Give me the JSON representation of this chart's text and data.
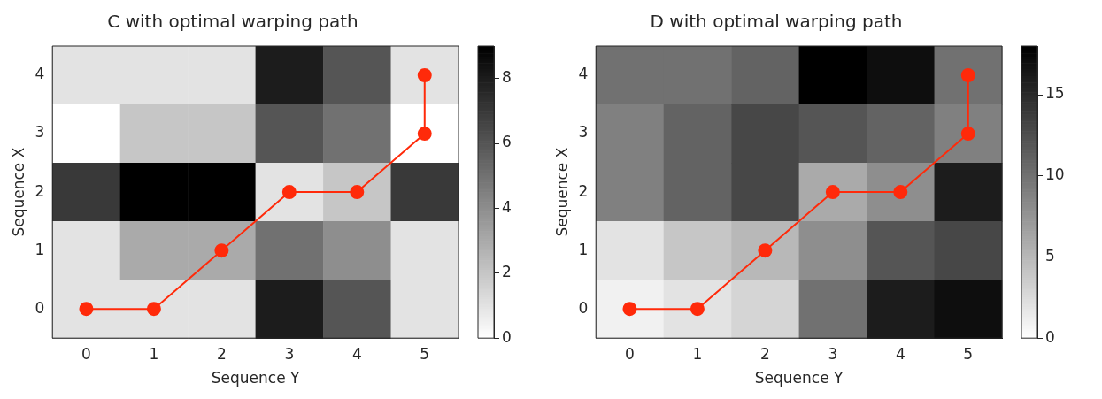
{
  "chart_data": [
    {
      "type": "heatmap",
      "title": "C with optimal warping path",
      "xlabel": "Sequence Y",
      "ylabel": "Sequence X",
      "xlim": [
        -0.5,
        5.5
      ],
      "xticks": [
        0,
        1,
        2,
        3,
        4,
        5
      ],
      "ylim": [
        -0.5,
        4.5
      ],
      "yticks": [
        0,
        1,
        2,
        3,
        4
      ],
      "cells": [
        [
          1,
          1,
          1,
          8,
          6,
          1
        ],
        [
          0,
          2,
          2,
          6,
          5,
          0
        ],
        [
          7,
          9,
          9,
          1,
          2,
          7
        ],
        [
          1,
          3,
          3,
          5,
          4,
          1
        ],
        [
          1,
          1,
          1,
          8,
          6,
          1
        ]
      ],
      "clim": [
        0,
        9
      ],
      "cticks": [
        0,
        2,
        4,
        6,
        8
      ],
      "marker": "circle",
      "series": [
        {
          "type": "line",
          "color": "#ff2a0a",
          "x": [
            0,
            1,
            2,
            3,
            4,
            5,
            5
          ],
          "values": [
            0,
            0,
            1,
            2,
            2,
            3,
            4
          ]
        }
      ]
    },
    {
      "type": "heatmap",
      "title": "D with optimal warping path",
      "xlabel": "Sequence Y",
      "ylabel": "Sequence X",
      "xlim": [
        -0.5,
        5.5
      ],
      "xticks": [
        0,
        1,
        2,
        3,
        4,
        5
      ],
      "ylim": [
        -0.5,
        4.5
      ],
      "yticks": [
        0,
        1,
        2,
        3,
        4
      ],
      "cells": [
        [
          10,
          10,
          11,
          18,
          17,
          10
        ],
        [
          9,
          11,
          13,
          12,
          11,
          9
        ],
        [
          9,
          11,
          13,
          6,
          8,
          16
        ],
        [
          2,
          4,
          5,
          8,
          12,
          13
        ],
        [
          1,
          2,
          3,
          10,
          16,
          17
        ]
      ],
      "clim": [
        0,
        18
      ],
      "cticks": [
        0,
        5,
        10,
        15
      ],
      "marker": "circle",
      "series": [
        {
          "type": "line",
          "color": "#ff2a0a",
          "x": [
            0,
            1,
            2,
            3,
            4,
            5,
            5
          ],
          "values": [
            0,
            0,
            1,
            2,
            2,
            3,
            4
          ]
        }
      ]
    }
  ]
}
